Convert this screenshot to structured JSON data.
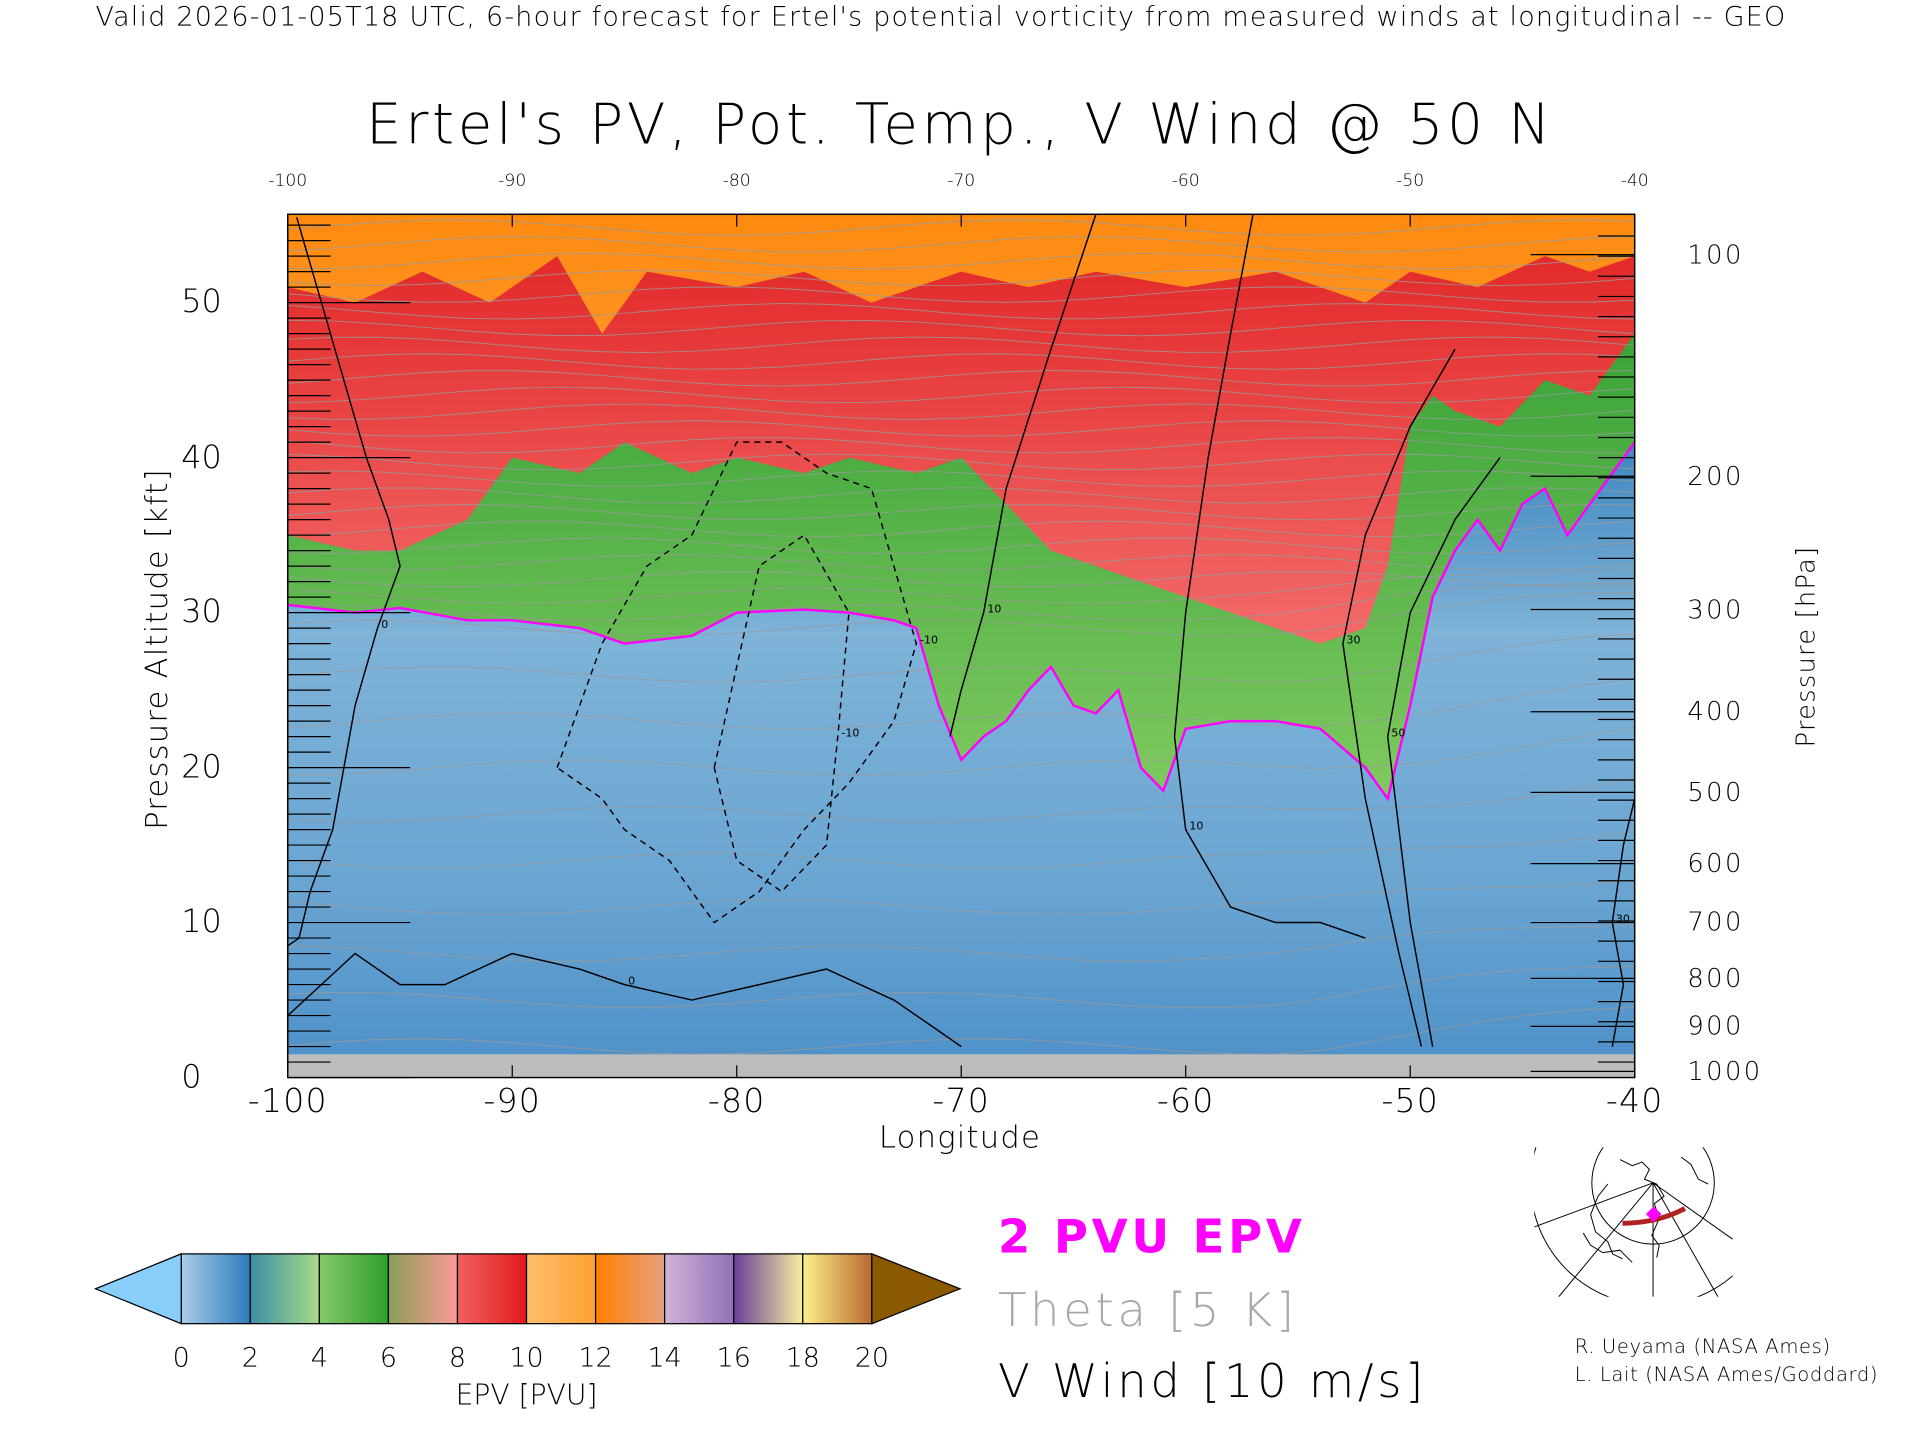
{
  "header": "Valid 2026-01-05T18 UTC, 6-hour forecast for Ertel's potential vorticity from measured winds at longitudinal -- GEO",
  "chart_data": {
    "type": "heatmap",
    "title": "Ertel's PV, Pot. Temp., V Wind @ 50 N",
    "xlabel": "Longitude",
    "ylabel": "Pressure Altitude [kft]",
    "y2label": "Pressure [hPa]",
    "xlim": [
      -100,
      -40
    ],
    "ylim": [
      0,
      55.7
    ],
    "x_ticks": [
      -100,
      -90,
      -80,
      -70,
      -60,
      -50,
      -40
    ],
    "x_tick_labels": [
      "-100",
      "-90",
      "-80",
      "-70",
      "-60",
      "-50",
      "-40"
    ],
    "top_tick_labels": [
      "-100",
      "-90",
      "-80",
      "-70",
      "-60",
      "-50",
      "-40"
    ],
    "y_ticks": [
      0,
      10,
      20,
      30,
      40,
      50
    ],
    "y_tick_labels": [
      "0",
      "10",
      "20",
      "30",
      "40",
      "50"
    ],
    "pressure_ticks": [
      {
        "label": "100",
        "kft": 53.1
      },
      {
        "label": "200",
        "kft": 38.8
      },
      {
        "label": "300",
        "kft": 30.2
      },
      {
        "label": "400",
        "kft": 23.6
      },
      {
        "label": "500",
        "kft": 18.4
      },
      {
        "label": "600",
        "kft": 13.8
      },
      {
        "label": "700",
        "kft": 10.0
      },
      {
        "label": "800",
        "kft": 6.4
      },
      {
        "label": "900",
        "kft": 3.3
      },
      {
        "label": "1000",
        "kft": 0.4
      }
    ],
    "tropopause_2pvu_kft": {
      "lon": [
        -100,
        -97,
        -95,
        -92,
        -90,
        -87,
        -85,
        -82,
        -80,
        -77,
        -75,
        -73,
        -72,
        -71,
        -70,
        -69,
        -68,
        -67,
        -66,
        -65,
        -64,
        -63,
        -62,
        -61,
        -60,
        -58,
        -56,
        -54,
        -52,
        -51,
        -50,
        -49,
        -48,
        -47,
        -46,
        -45,
        -44,
        -43,
        -42,
        -41,
        -40
      ],
      "kft": [
        30.5,
        30,
        30.3,
        29.5,
        29.5,
        29,
        28,
        28.5,
        30,
        30.2,
        30,
        29.5,
        29,
        24,
        20.5,
        22,
        23,
        25,
        26.5,
        24,
        23.5,
        25,
        20,
        18.5,
        22.5,
        23,
        23,
        22.5,
        20,
        18,
        24,
        31,
        34,
        36,
        34,
        37,
        38,
        35,
        37,
        39,
        41
      ]
    },
    "pv6_boundary_kft": {
      "lon": [
        -100,
        -97,
        -95,
        -92,
        -90,
        -87,
        -85,
        -82,
        -80,
        -77,
        -75,
        -72,
        -70,
        -68,
        -66,
        -64,
        -62,
        -60,
        -58,
        -56,
        -54,
        -52,
        -51,
        -50,
        -49,
        -48,
        -46,
        -44,
        -42,
        -40
      ],
      "kft": [
        35,
        34,
        34,
        36,
        40,
        39,
        41,
        39,
        40,
        39,
        40,
        39,
        40,
        37,
        34,
        33,
        32,
        31,
        30,
        29,
        28,
        29,
        33,
        42,
        44,
        43,
        42,
        45,
        44,
        48
      ]
    },
    "pv11_boundary_kft": {
      "lon": [
        -100,
        -97,
        -94,
        -91,
        -88,
        -86,
        -84,
        -80,
        -77,
        -74,
        -70,
        -67,
        -64,
        -60,
        -56,
        -52,
        -50,
        -47,
        -44,
        -42,
        -40
      ],
      "kft": [
        51,
        50,
        52,
        50,
        53,
        48,
        52,
        51,
        52,
        50,
        52,
        51,
        52,
        51,
        52,
        50,
        52,
        51,
        53,
        52,
        53
      ]
    },
    "ground_kft": 1.5,
    "theta_levels_K": [
      "300",
      "310",
      "320",
      "330",
      "340",
      "350",
      "360",
      "370",
      "380",
      "390",
      "400",
      "410",
      "420"
    ],
    "v_wind_contours": [
      {
        "label": "0",
        "lon": [
          -99.6,
          -98.5,
          -97.5,
          -96.5,
          -95.5,
          -95,
          -96,
          -97,
          -98,
          -99,
          -99.5,
          -100
        ],
        "kft": [
          55.5,
          50,
          45,
          40,
          36,
          33,
          29,
          24,
          16,
          12,
          9,
          8.5
        ]
      },
      {
        "label": "0",
        "lon": [
          -100,
          -97,
          -95,
          -93,
          -90,
          -87,
          -85,
          -82,
          -79,
          -76,
          -73,
          -71,
          -70
        ],
        "kft": [
          4,
          8,
          6,
          6,
          8,
          7,
          6,
          5,
          6,
          7,
          5,
          3,
          2
        ]
      },
      {
        "label": "-10",
        "lon": [
          -88,
          -86,
          -84,
          -82,
          -80,
          -78,
          -76,
          -74,
          -73,
          -72,
          -73,
          -75,
          -77,
          -79,
          -81,
          -83,
          -85,
          -86,
          -88
        ],
        "kft": [
          20,
          28,
          33,
          35,
          41,
          41,
          39,
          38,
          33,
          28,
          23,
          19,
          16,
          12,
          10,
          14,
          16,
          18,
          20
        ]
      },
      {
        "label": "-10",
        "lon": [
          -81,
          -79,
          -77,
          -75,
          -75.5,
          -76,
          -78,
          -80,
          -81
        ],
        "kft": [
          20,
          33,
          35,
          30,
          22,
          15,
          12,
          14,
          20
        ]
      },
      {
        "label": "10",
        "lon": [
          -64,
          -66,
          -68,
          -69,
          -70,
          -70.5
        ],
        "kft": [
          55.7,
          47,
          38,
          30,
          25,
          22
        ]
      },
      {
        "label": "10",
        "lon": [
          -57,
          -58,
          -59,
          -60,
          -60.5,
          -60,
          -58,
          -56,
          -54,
          -52
        ],
        "kft": [
          55.7,
          48,
          40,
          30,
          22,
          16,
          11,
          10,
          10,
          9
        ]
      },
      {
        "label": "30",
        "lon": [
          -48,
          -50,
          -52,
          -53,
          -52,
          -50.5,
          -49.5
        ],
        "kft": [
          47,
          42,
          35,
          28,
          18,
          8,
          2
        ]
      },
      {
        "label": "50",
        "lon": [
          -46,
          -48,
          -50,
          -51,
          -50,
          -49
        ],
        "kft": [
          40,
          36,
          30,
          22,
          10,
          2
        ]
      },
      {
        "label": "30",
        "lon": [
          -40,
          -40.5,
          -41,
          -40.5,
          -41
        ],
        "kft": [
          18,
          15,
          10,
          6,
          2
        ]
      }
    ]
  },
  "colorbar": {
    "title": "EPV [PVU]",
    "tick_labels": [
      "0",
      "2",
      "4",
      "6",
      "8",
      "10",
      "12",
      "14",
      "16",
      "18",
      "20"
    ],
    "under_color": "#87cefa",
    "over_color": "#8b5a00",
    "segments": [
      [
        "#a9cde6",
        "#2b7bba"
      ],
      [
        "#3b8fa8",
        "#a8dc86"
      ],
      [
        "#86c86c",
        "#2e9e2c"
      ],
      [
        "#8aa055",
        "#fb9a99"
      ],
      [
        "#f06060",
        "#e31a1c"
      ],
      [
        "#fdbf6f",
        "#ffa030"
      ],
      [
        "#ff8000",
        "#e8a080"
      ],
      [
        "#d0b4d8",
        "#9070b8"
      ],
      [
        "#6a3d9a",
        "#f7f0a0"
      ],
      [
        "#fdf08a",
        "#b86a30"
      ]
    ]
  },
  "legend": {
    "pv": "2 PVU EPV",
    "theta": "Theta [5 K]",
    "wind": "V Wind [10 m/s]",
    "pv_color": "#ff00ff",
    "theta_color": "#a8a8a8"
  },
  "credits": [
    "R. Ueyama (NASA Ames)",
    "L. Lait (NASA Ames/Goddard)"
  ]
}
